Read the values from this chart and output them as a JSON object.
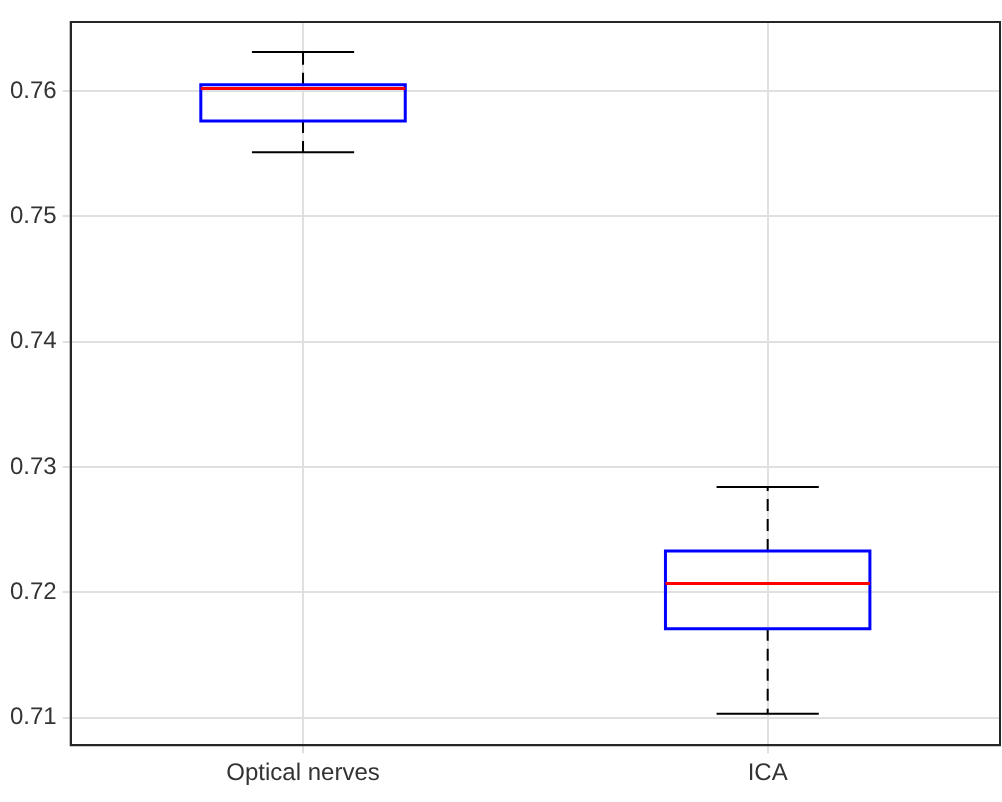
{
  "chart_data": {
    "type": "box",
    "categories": [
      "Optical nerves",
      "ICA"
    ],
    "color": "#0000ff",
    "boxes": [
      {
        "low": 0.7551,
        "q1": 0.7576,
        "median": 0.7602,
        "q3": 0.7605,
        "high": 0.7631
      },
      {
        "low": 0.7103,
        "q1": 0.7171,
        "median": 0.7207,
        "q3": 0.7233,
        "high": 0.7284
      }
    ],
    "ylim": [
      0.7078,
      0.7655
    ],
    "yticks": [
      0.71,
      0.72,
      0.73,
      0.74,
      0.75,
      0.76
    ],
    "grid": true
  }
}
